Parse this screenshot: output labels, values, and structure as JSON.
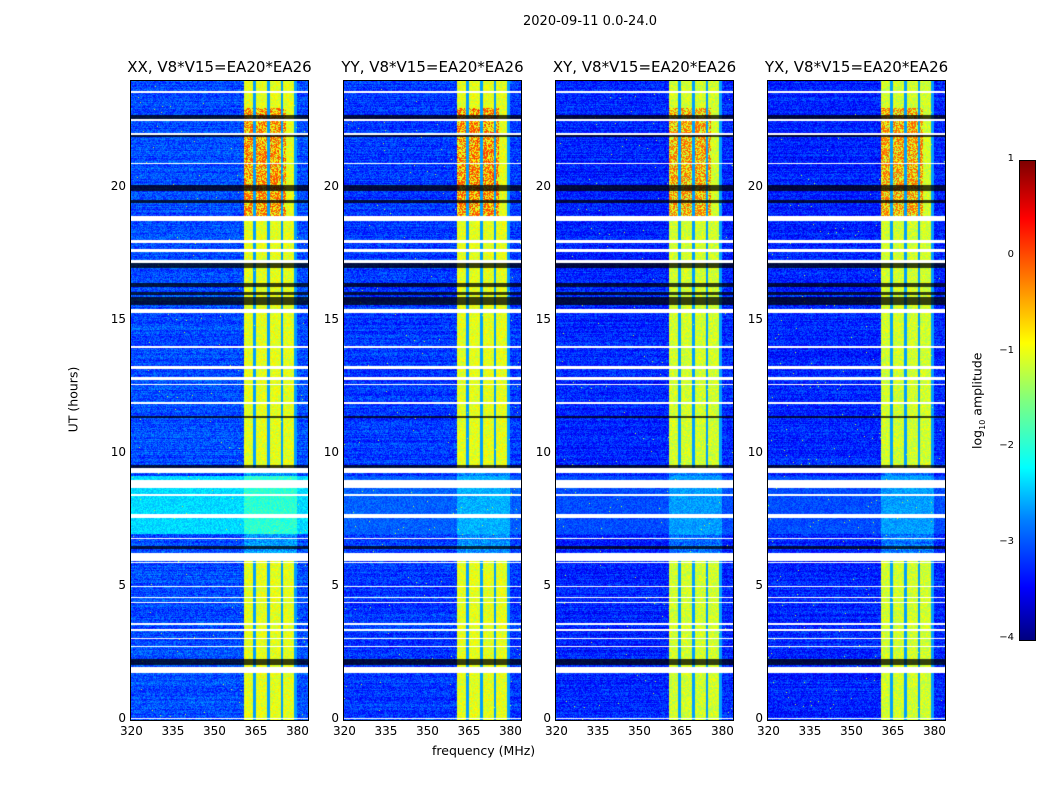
{
  "chart_data": {
    "type": "heatmap",
    "title": "2020-09-11 0.0-24.0",
    "xlabel": "frequency (MHz)",
    "ylabel": "UT (hours)",
    "xlim": [
      320,
      384
    ],
    "ylim": [
      0,
      24
    ],
    "xticks": [
      "320",
      "335",
      "350",
      "365",
      "380"
    ],
    "xtick_values": [
      320,
      335,
      350,
      365,
      380
    ],
    "yticks": [
      "0",
      "5",
      "10",
      "15",
      "20"
    ],
    "ytick_values": [
      0,
      5,
      10,
      15,
      20
    ],
    "panels": [
      {
        "title": "XX, V8*V15=EA20*EA26",
        "base_level": -3.0,
        "band_level": -1.0,
        "hot_level": -0.1,
        "cyan_block_level": -2.3
      },
      {
        "title": "YY, V8*V15=EA20*EA26",
        "base_level": -3.1,
        "band_level": -1.0,
        "hot_level": -0.05,
        "cyan_block_level": -2.9
      },
      {
        "title": "XY, V8*V15=EA20*EA26",
        "base_level": -3.2,
        "band_level": -1.1,
        "hot_level": -0.2,
        "cyan_block_level": -3.0
      },
      {
        "title": "YX, V8*V15=EA20*EA26",
        "base_level": -3.2,
        "band_level": -1.1,
        "hot_level": -0.2,
        "cyan_block_level": -3.0
      }
    ],
    "rfi_band_mhz": [
      360.5,
      380
    ],
    "subband_edges_mhz": [
      364.5,
      369.5,
      374.5,
      379.3
    ],
    "band_hot_hours": [
      18.8,
      23.0
    ],
    "flagged_white_hours": [
      [
        23.55,
        23.65
      ],
      [
        22.5,
        22.6
      ],
      [
        22.0,
        22.08
      ],
      [
        20.9,
        20.95
      ],
      [
        18.75,
        18.95
      ],
      [
        17.95,
        18.05
      ],
      [
        17.6,
        17.7
      ],
      [
        17.2,
        17.3
      ],
      [
        15.3,
        15.45
      ],
      [
        14.0,
        14.05
      ],
      [
        13.2,
        13.3
      ],
      [
        12.8,
        12.9
      ],
      [
        12.6,
        12.65
      ],
      [
        11.9,
        11.95
      ],
      [
        9.3,
        9.5
      ],
      [
        8.75,
        9.05
      ],
      [
        8.45,
        8.5
      ],
      [
        7.6,
        7.75
      ],
      [
        6.8,
        6.85
      ],
      [
        6.0,
        6.3
      ],
      [
        5.9,
        5.95
      ],
      [
        5.0,
        5.05
      ],
      [
        4.6,
        4.65
      ],
      [
        4.4,
        4.45
      ],
      [
        3.6,
        3.65
      ],
      [
        3.35,
        3.45
      ],
      [
        3.05,
        3.1
      ],
      [
        2.75,
        2.8
      ],
      [
        1.8,
        2.0
      ],
      [
        0.05,
        0.1
      ]
    ],
    "flagged_dark_hours": [
      [
        22.6,
        22.75
      ],
      [
        21.9,
        22.0
      ],
      [
        19.9,
        20.1
      ],
      [
        19.45,
        19.55
      ],
      [
        17.0,
        17.2
      ],
      [
        16.3,
        16.45
      ],
      [
        16.0,
        16.1
      ],
      [
        15.6,
        15.9
      ],
      [
        11.35,
        11.45
      ],
      [
        9.5,
        9.6
      ],
      [
        6.45,
        6.55
      ],
      [
        2.1,
        2.3
      ]
    ],
    "colorbar": {
      "label": "log",
      "label_sub": "10",
      "label_rest": " amplitude",
      "ticks": [
        "1",
        "0",
        "−1",
        "−2",
        "−3",
        "−4"
      ],
      "tick_values": [
        1,
        0,
        -1,
        -2,
        -3,
        -4
      ],
      "range": [
        -4,
        1
      ],
      "colormap": "jet"
    }
  }
}
